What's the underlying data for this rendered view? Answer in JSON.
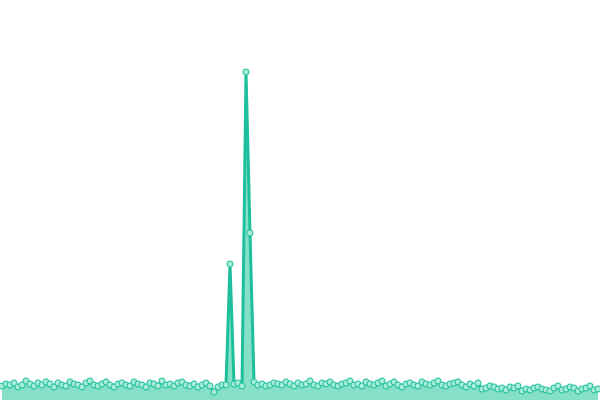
{
  "chart_data": {
    "type": "line",
    "values": [
      14,
      16,
      15,
      17,
      13,
      15,
      19,
      16,
      14,
      17,
      15,
      18,
      16,
      13,
      17,
      15,
      14,
      18,
      16,
      15,
      13,
      17,
      19,
      15,
      14,
      16,
      18,
      15,
      13,
      16,
      17,
      15,
      14,
      18,
      16,
      15,
      13,
      17,
      16,
      14,
      19,
      15,
      16,
      14,
      17,
      18,
      15,
      14,
      16,
      13,
      15,
      17,
      14,
      8,
      13,
      15,
      15,
      136,
      16,
      17,
      14,
      328,
      167,
      18,
      15,
      16,
      14,
      15,
      17,
      16,
      15,
      18,
      16,
      14,
      17,
      15,
      16,
      19,
      15,
      14,
      17,
      16,
      18,
      15,
      14,
      16,
      17,
      19,
      15,
      16,
      14,
      18,
      16,
      15,
      17,
      19,
      14,
      16,
      18,
      15,
      13,
      16,
      17,
      15,
      14,
      18,
      16,
      15,
      17,
      19,
      15,
      14,
      16,
      17,
      18,
      15,
      13,
      16,
      14,
      17,
      11,
      12,
      14,
      13,
      11,
      12,
      10,
      13,
      12,
      14,
      9,
      11,
      10,
      12,
      13,
      11,
      10,
      9,
      12,
      14,
      10,
      11,
      13,
      12,
      9,
      11,
      12,
      14,
      10,
      11
    ],
    "color": "#1dbf9c",
    "area_color": "#86e0c8",
    "marker_color": "#a8ecd8",
    "ylim": [
      0,
      400
    ],
    "grid": false,
    "markers": true,
    "area": true
  }
}
